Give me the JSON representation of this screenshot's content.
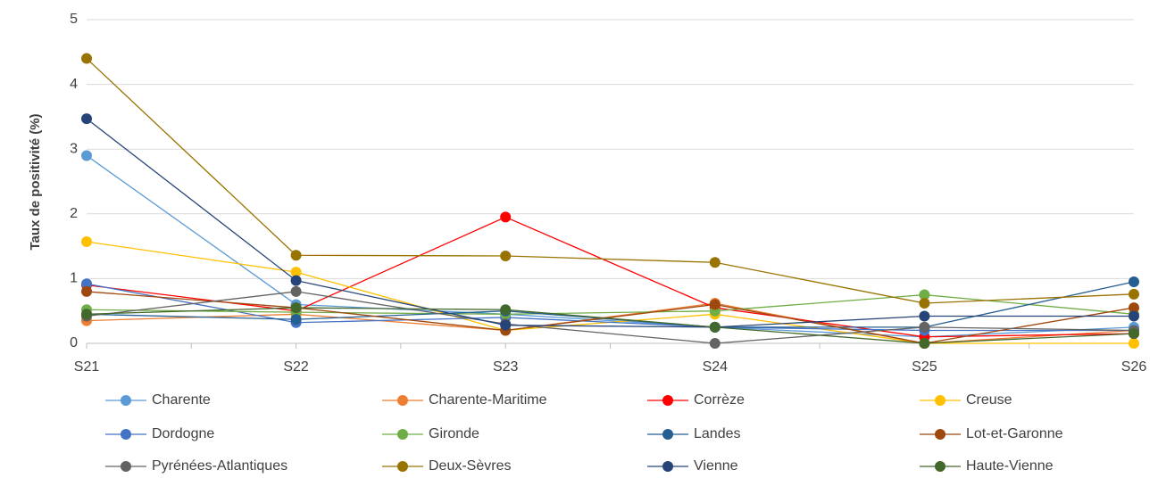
{
  "chart_data": {
    "type": "line",
    "y_label": "Taux de positivité (%)",
    "categories": [
      "S21",
      "S22",
      "S23",
      "S24",
      "S25",
      "S26"
    ],
    "ylim": [
      0,
      5
    ],
    "yticks": [
      0,
      1,
      2,
      3,
      4,
      5
    ],
    "grid": true,
    "legend": "bottom",
    "series": [
      {
        "name": "Charente",
        "color": "#5b9bd5",
        "values": [
          2.9,
          0.6,
          0.45,
          0.25,
          0.1,
          0.25
        ]
      },
      {
        "name": "Charente-Maritime",
        "color": "#ed7d31",
        "values": [
          0.35,
          0.45,
          0.2,
          0.62,
          0.0,
          0.2
        ]
      },
      {
        "name": "Corrèze",
        "color": "#ff0000",
        "values": [
          0.9,
          0.5,
          1.95,
          0.55,
          0.1,
          0.15
        ]
      },
      {
        "name": "Creuse",
        "color": "#ffc000",
        "values": [
          1.57,
          1.1,
          0.2,
          0.45,
          0.0,
          0.0
        ]
      },
      {
        "name": "Dordogne",
        "color": "#4472c4",
        "values": [
          0.92,
          0.32,
          0.4,
          0.25,
          0.2,
          0.2
        ]
      },
      {
        "name": "Gironde",
        "color": "#70ad47",
        "values": [
          0.52,
          0.48,
          0.45,
          0.5,
          0.75,
          0.45
        ]
      },
      {
        "name": "Landes",
        "color": "#255e91",
        "values": [
          0.45,
          0.37,
          0.5,
          0.25,
          0.25,
          0.95
        ]
      },
      {
        "name": "Lot-et-Garonne",
        "color": "#9e480e",
        "values": [
          0.8,
          0.55,
          0.2,
          0.6,
          0.0,
          0.55
        ]
      },
      {
        "name": "Pyrénées-Atlantiques",
        "color": "#636363",
        "values": [
          0.42,
          0.8,
          0.3,
          0.0,
          0.25,
          0.2
        ]
      },
      {
        "name": "Deux-Sèvres",
        "color": "#997300",
        "values": [
          4.4,
          1.36,
          1.35,
          1.25,
          0.62,
          0.76
        ]
      },
      {
        "name": "Vienne",
        "color": "#264478",
        "values": [
          3.47,
          0.97,
          0.28,
          0.25,
          0.42,
          0.42
        ]
      },
      {
        "name": "Haute-Vienne",
        "color": "#43682b",
        "values": [
          0.45,
          0.55,
          0.52,
          0.25,
          0.0,
          0.15
        ]
      }
    ]
  }
}
